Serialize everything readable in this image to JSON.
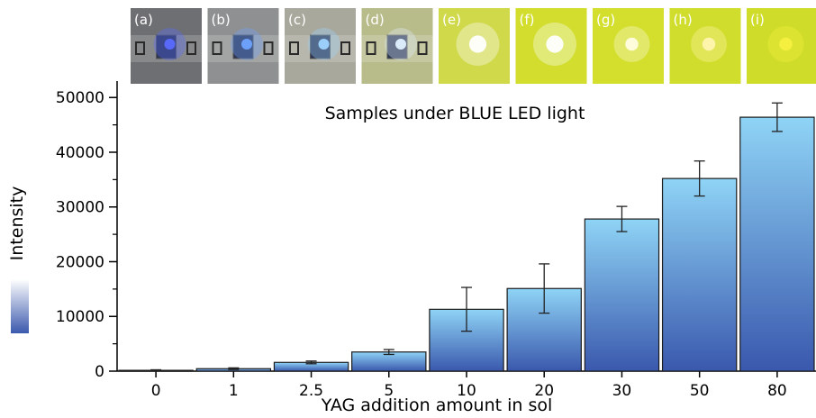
{
  "chart_data": {
    "type": "bar",
    "title": "Samples under BLUE LED light",
    "xlabel": "YAG addition amount in sol",
    "ylabel": "Intensity",
    "categories": [
      "0",
      "1",
      "2.5",
      "5",
      "10",
      "20",
      "30",
      "50",
      "80"
    ],
    "values": [
      150,
      450,
      1600,
      3500,
      11300,
      15100,
      27800,
      35200,
      46400
    ],
    "errors": [
      100,
      150,
      250,
      450,
      4000,
      4500,
      2300,
      3200,
      2600
    ],
    "ylim": [
      0,
      53000
    ],
    "yticks": [
      0,
      10000,
      20000,
      30000,
      40000,
      50000
    ],
    "ytick_labels": [
      "0",
      "10000",
      "20000",
      "30000",
      "40000",
      "50000"
    ],
    "grid": false,
    "legend": "none",
    "bar_gradient": [
      "#3a58ad",
      "#8fd4f6"
    ],
    "colorbar_gradient": [
      "#3a58ad",
      "#ffffff"
    ]
  },
  "photo_strip": {
    "labels": [
      "(a)",
      "(b)",
      "(c)",
      "(d)",
      "(e)",
      "(f)",
      "(g)",
      "(h)",
      "(i)"
    ],
    "backgrounds": [
      "#6e6f72",
      "#8f9091",
      "#a8a89c",
      "#b8bb8a",
      "#cfd94a",
      "#d2dd2e",
      "#d3df2c",
      "#d1dd2c",
      "#d0dc2a"
    ],
    "glow_colors": [
      "#5a6cff",
      "#6fa4ff",
      "#9fd4ff",
      "#e0f2ff",
      "#ffffff",
      "#ffffff",
      "#fffde0",
      "#fff6b0",
      "#f5f040"
    ]
  }
}
